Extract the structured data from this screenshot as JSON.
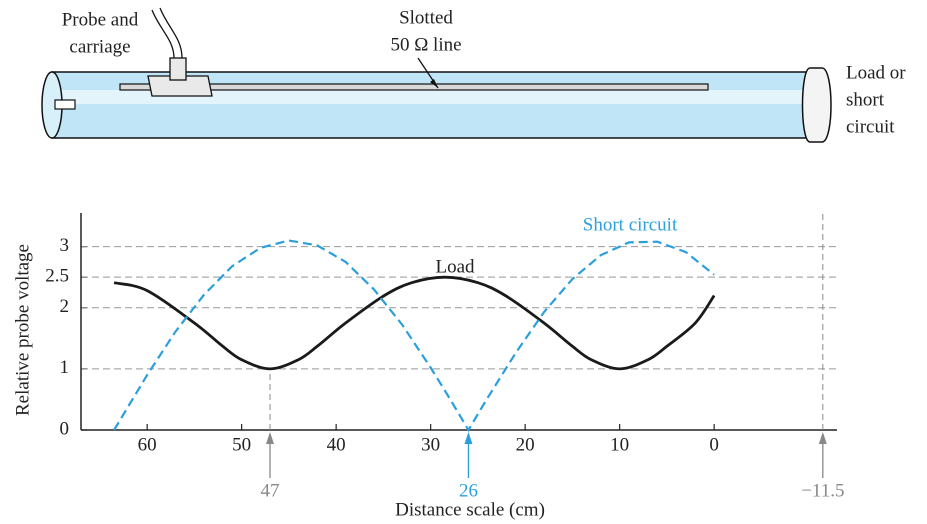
{
  "diagram": {
    "probe_label": [
      "Probe and",
      "carriage"
    ],
    "line_label": [
      "Slotted",
      "50 Ω line"
    ],
    "load_label": [
      "Load or",
      "short",
      "circuit"
    ]
  },
  "chart_data": {
    "type": "line",
    "x_label": "Distance scale (cm)",
    "y_label": "Relative probe voltage",
    "xlim": [
      67,
      -13
    ],
    "ylim": [
      0,
      3.55
    ],
    "xticks": [
      60,
      50,
      40,
      30,
      20,
      10,
      0
    ],
    "yticks": [
      0,
      1,
      2,
      2.5,
      3
    ],
    "grid": true,
    "series": [
      {
        "name": "Load",
        "color": "#1a1a1a",
        "dashed": false,
        "x": [
          63.5,
          60,
          55,
          52,
          50,
          47,
          44,
          42,
          39,
          35,
          32,
          28.5,
          25,
          22,
          18,
          15,
          13,
          10,
          7,
          5,
          2,
          0
        ],
        "values": [
          2.41,
          2.28,
          1.75,
          1.37,
          1.15,
          1.0,
          1.15,
          1.37,
          1.75,
          2.19,
          2.41,
          2.5,
          2.41,
          2.19,
          1.75,
          1.37,
          1.15,
          1.0,
          1.15,
          1.37,
          1.75,
          2.2
        ]
      },
      {
        "name": "Short circuit",
        "color": "#2a9fdc",
        "dashed": true,
        "x": [
          63.5,
          60,
          57,
          54,
          51,
          48,
          45,
          42,
          39,
          36,
          33,
          30,
          28,
          26,
          24,
          21,
          18,
          15,
          12,
          9,
          6,
          3,
          0
        ],
        "values": [
          0,
          0.9,
          1.61,
          2.21,
          2.68,
          2.98,
          3.1,
          3.02,
          2.75,
          2.3,
          1.72,
          1.02,
          0.52,
          0,
          0.52,
          1.26,
          1.93,
          2.47,
          2.86,
          3.07,
          3.08,
          2.91,
          2.54
        ]
      }
    ],
    "x_markers": [
      47,
      26,
      {
        "value": -11.5,
        "label": "−11.5"
      }
    ],
    "x_marker_colors": [
      "#888888",
      "#2a9fdc",
      "#888888"
    ]
  }
}
